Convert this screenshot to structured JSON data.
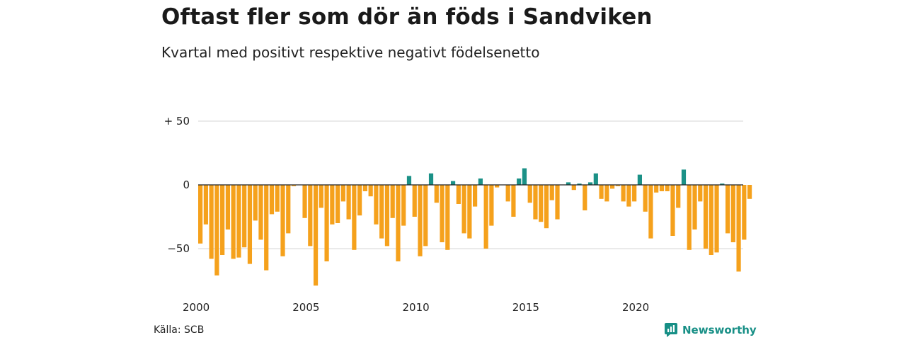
{
  "title": "Oftast fler som dör än föds i Sandviken",
  "subtitle": "Kvartal med positivt respektive negativt födelsenetto",
  "source": "Källa: SCB",
  "brand": {
    "name": "Newsworthy",
    "icon": "newsworthy-logo-icon",
    "color": "#178f86"
  },
  "colors": {
    "positive": "#1b9187",
    "negative": "#f5a11c",
    "gridline": "#dddddd",
    "zeroline": "#222222"
  },
  "chart_data": {
    "type": "bar",
    "title": "Oftast fler som dör än föds i Sandviken",
    "subtitle": "Kvartal med positivt respektive negativt födelsenetto",
    "xlabel": "",
    "ylabel": "",
    "x_range": [
      2000,
      2025
    ],
    "ylim": [
      -80,
      50
    ],
    "y_ticks": [
      50,
      0,
      -50
    ],
    "y_tick_labels": [
      "+ 50",
      "0",
      "−50"
    ],
    "x_ticks": [
      2000,
      2005,
      2010,
      2015,
      2020
    ],
    "x_tick_labels": [
      "2000",
      "2005",
      "2010",
      "2015",
      "2020"
    ],
    "grid": true,
    "legend": "none",
    "series": [
      {
        "start": "2000 Q1",
        "values": [
          -46,
          -31,
          -58,
          -71,
          -55,
          -35,
          -58,
          -57,
          -49,
          -62,
          -28,
          -43,
          -67,
          -23,
          -21,
          -56,
          -38,
          -1,
          0,
          -26,
          -48,
          -79,
          -18,
          -60,
          -31,
          -30,
          -13,
          -27,
          -51,
          -24,
          -5,
          -9,
          -31,
          -42,
          -48,
          -26,
          -60,
          -32,
          7,
          -25,
          -56,
          -48,
          9,
          -14,
          -45,
          -51,
          3,
          -15,
          -38,
          -42,
          -17,
          5,
          -50,
          -32,
          -2,
          0,
          -13,
          -25,
          5,
          13,
          -14,
          -27,
          -29,
          -34,
          -12,
          -27,
          0,
          2,
          -4,
          1,
          -20,
          2,
          9,
          -11,
          -13,
          -3,
          -1,
          -13,
          -17,
          -13,
          8,
          -21,
          -42,
          -6,
          -5,
          -5,
          -40,
          -18,
          12,
          -51,
          -35,
          -13,
          -50,
          -55,
          -53,
          1,
          -38,
          -45,
          -68,
          -43,
          -11
        ]
      }
    ]
  }
}
